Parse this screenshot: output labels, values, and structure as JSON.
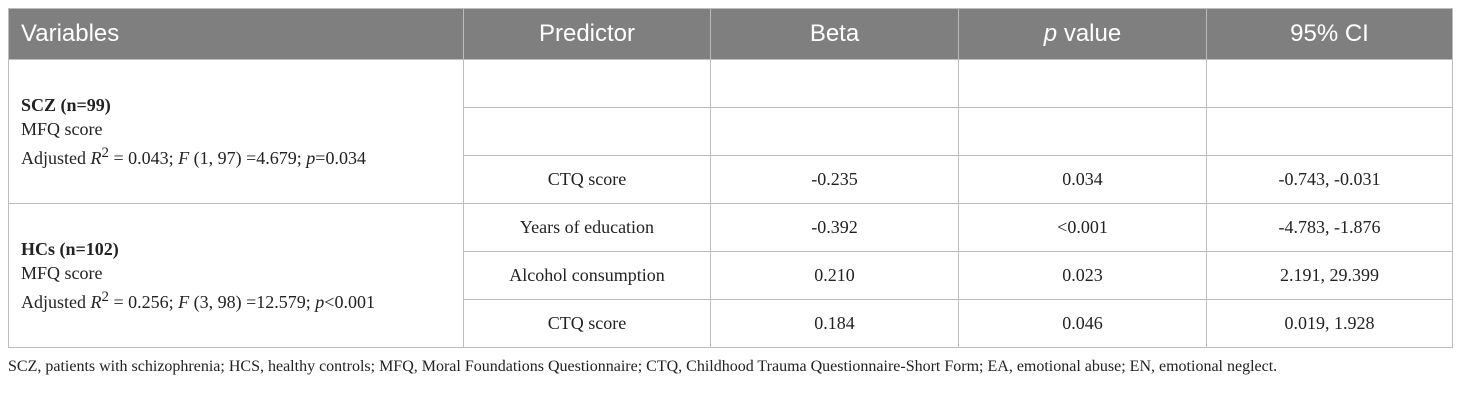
{
  "table": {
    "headers": [
      "Variables",
      "Predictor",
      "Beta",
      "p value",
      "95% CI"
    ],
    "groups": [
      {
        "title": "SCZ (n=99)",
        "outcome": "MFQ score",
        "model": {
          "adjusted_prefix": "Adjusted ",
          "r": "R",
          "r_sup": "2",
          "r_value": " = 0.043; ",
          "f": "F",
          "f_value": " (1, 97) =4.679; ",
          "p": "p",
          "p_value": "=0.034"
        },
        "rows": [
          {
            "predictor": "",
            "beta": "",
            "p": "",
            "ci": ""
          },
          {
            "predictor": "",
            "beta": "",
            "p": "",
            "ci": ""
          },
          {
            "predictor": "CTQ score",
            "beta": "-0.235",
            "p": "0.034",
            "ci": "-0.743, -0.031"
          }
        ]
      },
      {
        "title": "HCs (n=102)",
        "outcome": "MFQ score",
        "model": {
          "adjusted_prefix": "Adjusted ",
          "r": "R",
          "r_sup": "2",
          "r_value": " = 0.256; ",
          "f": "F",
          "f_value": " (3, 98) =12.579; ",
          "p": "p",
          "p_value": "<0.001"
        },
        "rows": [
          {
            "predictor": "Years of education",
            "beta": "-0.392",
            "p": "<0.001",
            "ci": "-4.783, -1.876"
          },
          {
            "predictor": "Alcohol consumption",
            "beta": "0.210",
            "p": "0.023",
            "ci": "2.191, 29.399"
          },
          {
            "predictor": "CTQ score",
            "beta": "0.184",
            "p": "0.046",
            "ci": "0.019, 1.928"
          }
        ]
      }
    ]
  },
  "footnote": "SCZ, patients with schizophrenia; HCS, healthy controls; MFQ, Moral Foundations Questionnaire; CTQ, Childhood Trauma Questionnaire-Short Form; EA, emotional abuse; EN, emotional neglect."
}
